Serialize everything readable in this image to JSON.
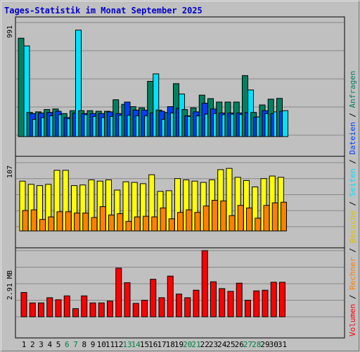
{
  "title": "Tages-Statistik im Monat September 2025",
  "colors": {
    "anfragen": "#008060",
    "dateien": "#0040ff",
    "seiten": "#00e0ff",
    "besuche": "#ffff00",
    "rechner": "#ff8000",
    "volumen": "#ff0000",
    "weekend": "#008040"
  },
  "chart_data": {
    "type": "bar",
    "categories": [
      "1",
      "2",
      "3",
      "4",
      "5",
      "6",
      "7",
      "8",
      "9",
      "10",
      "11",
      "12",
      "13",
      "14",
      "15",
      "16",
      "17",
      "18",
      "19",
      "20",
      "21",
      "22",
      "23",
      "24",
      "25",
      "26",
      "27",
      "28",
      "29",
      "30",
      "31"
    ],
    "weekend_days": [
      "6",
      "7",
      "13",
      "14",
      "20",
      "21",
      "27",
      "28"
    ],
    "panels": [
      {
        "id": "requests",
        "ymax_label": "991",
        "ymax": 991,
        "series": [
          {
            "name": "Anfragen",
            "color": "#008060",
            "values": [
              855,
              210,
              215,
              235,
              240,
              200,
              225,
              225,
              225,
              220,
              220,
              320,
              280,
              260,
              250,
              480,
              230,
              210,
              460,
              235,
              250,
              360,
              330,
              300,
              300,
              300,
              530,
              210,
              275,
              325,
              332
            ]
          },
          {
            "name": "Dateien",
            "color": "#0040ff",
            "values": [
              null,
              200,
              205,
              210,
              220,
              165,
              205,
              200,
              200,
              200,
              215,
              200,
              300,
              230,
              230,
              205,
              220,
              260,
              245,
              180,
              215,
              290,
              240,
              205,
              205,
              205,
              210,
              170,
              225,
              200,
              220
            ]
          },
          {
            "name": "Seiten",
            "color": "#00e0ff",
            "values": [
              788,
              150,
              165,
              180,
              190,
              155,
              925,
              190,
              175,
              165,
              175,
              185,
              185,
              180,
              180,
              545,
              150,
              205,
              370,
              175,
              180,
              195,
              200,
              190,
              195,
              192,
              405,
              170,
              200,
              215,
              225
            ]
          }
        ]
      },
      {
        "id": "visits",
        "ymax_label": "107",
        "ymax": 107,
        "series": [
          {
            "name": "Besuche",
            "color": "#ffff00",
            "values": [
              78,
              73,
              71,
              73,
              95,
              95,
              71,
              72,
              80,
              78,
              80,
              64,
              77,
              76,
              74,
              88,
              62,
              63,
              82,
              80,
              78,
              76,
              80,
              96,
              98,
              84,
              79,
              69,
              82,
              86,
              84
            ]
          },
          {
            "name": "Rechner",
            "color": "#ff8000",
            "values": [
              32,
              33,
              18,
              22,
              30,
              30,
              28,
              28,
              21,
              38,
              25,
              27,
              15,
              22,
              23,
              22,
              36,
              19,
              29,
              33,
              29,
              39,
              48,
              47,
              24,
              40,
              36,
              20,
              40,
              44,
              45
            ]
          }
        ]
      },
      {
        "id": "volume",
        "ymax_label": "2.91 MB",
        "ymax": 2.91,
        "series": [
          {
            "name": "Volumen",
            "color": "#ff0000",
            "values": [
              1.07,
              0.61,
              0.61,
              0.84,
              0.75,
              0.92,
              0.36,
              0.92,
              0.61,
              0.61,
              0.69,
              2.14,
              1.5,
              0.59,
              0.73,
              1.65,
              0.84,
              1.79,
              1.0,
              0.84,
              1.17,
              2.91,
              1.54,
              1.24,
              1.12,
              1.48,
              0.73,
              1.14,
              1.17,
              1.52,
              1.52
            ]
          }
        ]
      }
    ],
    "legend": [
      {
        "label": "Anfragen",
        "color": "#008060"
      },
      {
        "label": "Dateien",
        "color": "#0040ff"
      },
      {
        "label": "Seiten",
        "color": "#00e0ff"
      },
      {
        "label": "Besuche",
        "color": "#ffff00"
      },
      {
        "label": "Rechner",
        "color": "#ff8000"
      },
      {
        "label": "Volumen",
        "color": "#ff0000"
      }
    ],
    "separator": "/",
    "legend_placement": "right, vertical",
    "grid": true
  }
}
